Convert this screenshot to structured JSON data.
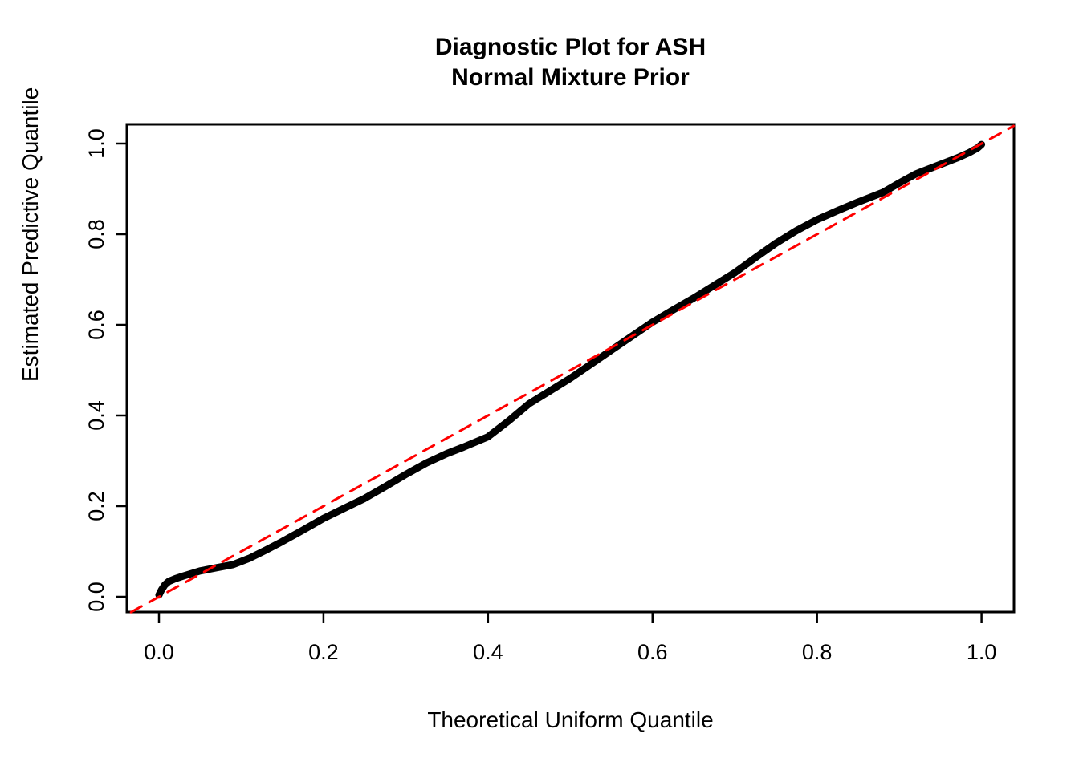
{
  "chart_data": {
    "type": "line",
    "title": "Diagnostic Plot for ASH",
    "title_line2": "Normal Mixture Prior",
    "xlabel": "Theoretical Uniform Quantile",
    "ylabel": "Estimated Predictive Quantile",
    "xlim": [
      -0.04,
      1.04
    ],
    "ylim": [
      -0.034,
      1.042
    ],
    "grid": false,
    "legend": "none",
    "x_ticks": {
      "values": [
        0.0,
        0.2,
        0.4,
        0.6,
        0.8,
        1.0
      ],
      "labels": [
        "0.0",
        "0.2",
        "0.4",
        "0.6",
        "0.8",
        "1.0"
      ]
    },
    "y_ticks": {
      "values": [
        0.0,
        0.2,
        0.4,
        0.6,
        0.8,
        1.0
      ],
      "labels": [
        "0.0",
        "0.2",
        "0.4",
        "0.6",
        "0.8",
        "1.0"
      ]
    },
    "series": [
      {
        "name": "ash-estimated-predictive-quantiles",
        "style": "solid",
        "color": "#000000",
        "line_width": 9,
        "points": [
          [
            0.0,
            0.004
          ],
          [
            0.003,
            0.015
          ],
          [
            0.007,
            0.026
          ],
          [
            0.012,
            0.034
          ],
          [
            0.02,
            0.04
          ],
          [
            0.03,
            0.046
          ],
          [
            0.05,
            0.057
          ],
          [
            0.07,
            0.064
          ],
          [
            0.09,
            0.071
          ],
          [
            0.11,
            0.085
          ],
          [
            0.13,
            0.103
          ],
          [
            0.15,
            0.122
          ],
          [
            0.175,
            0.147
          ],
          [
            0.2,
            0.173
          ],
          [
            0.225,
            0.195
          ],
          [
            0.25,
            0.217
          ],
          [
            0.275,
            0.243
          ],
          [
            0.3,
            0.27
          ],
          [
            0.325,
            0.295
          ],
          [
            0.35,
            0.316
          ],
          [
            0.37,
            0.33
          ],
          [
            0.4,
            0.353
          ],
          [
            0.425,
            0.388
          ],
          [
            0.45,
            0.426
          ],
          [
            0.475,
            0.454
          ],
          [
            0.5,
            0.482
          ],
          [
            0.525,
            0.513
          ],
          [
            0.55,
            0.544
          ],
          [
            0.575,
            0.575
          ],
          [
            0.6,
            0.606
          ],
          [
            0.625,
            0.633
          ],
          [
            0.65,
            0.659
          ],
          [
            0.675,
            0.687
          ],
          [
            0.7,
            0.715
          ],
          [
            0.725,
            0.748
          ],
          [
            0.75,
            0.78
          ],
          [
            0.775,
            0.808
          ],
          [
            0.8,
            0.832
          ],
          [
            0.825,
            0.852
          ],
          [
            0.85,
            0.871
          ],
          [
            0.88,
            0.892
          ],
          [
            0.9,
            0.913
          ],
          [
            0.92,
            0.933
          ],
          [
            0.95,
            0.954
          ],
          [
            0.97,
            0.968
          ],
          [
            0.985,
            0.98
          ],
          [
            0.995,
            0.99
          ],
          [
            1.0,
            0.998
          ]
        ]
      },
      {
        "name": "identity-reference-line",
        "style": "dashed",
        "color": "#FF0000",
        "line_width": 3,
        "points": [
          [
            -0.034,
            -0.034
          ],
          [
            1.039,
            1.039
          ]
        ]
      }
    ]
  }
}
